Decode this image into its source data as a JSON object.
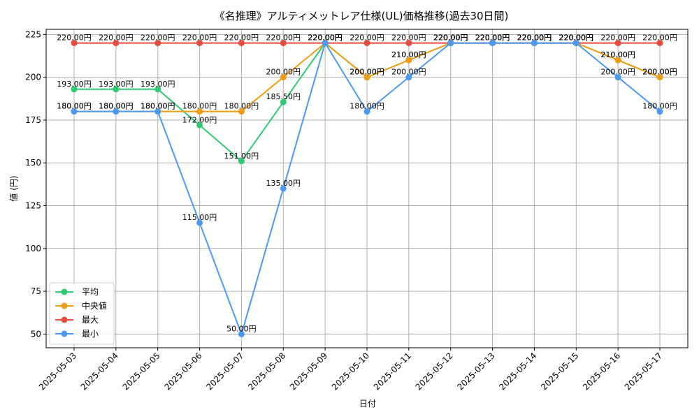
{
  "chart_data": {
    "type": "line",
    "title": "《名推理》アルティメットレア仕様(UL)価格推移(過去30日間)",
    "xlabel": "日付",
    "ylabel": "値 (円)",
    "ylim": [
      42,
      228
    ],
    "yticks": [
      50,
      75,
      100,
      125,
      150,
      175,
      200,
      225
    ],
    "grid": true,
    "legend_position": "lower-left",
    "value_suffix": "円",
    "x": [
      "2025-05-03",
      "2025-05-04",
      "2025-05-05",
      "2025-05-06",
      "2025-05-07",
      "2025-05-08",
      "2025-05-09",
      "2025-05-10",
      "2025-05-11",
      "2025-05-12",
      "2025-05-13",
      "2025-05-14",
      "2025-05-15",
      "2025-05-16",
      "2025-05-17"
    ],
    "series": [
      {
        "name": "平均",
        "color": "#2ecc71",
        "values": [
          193,
          193,
          193,
          172,
          151,
          185.5,
          220,
          200,
          210,
          220,
          220,
          220,
          220,
          210,
          200
        ]
      },
      {
        "name": "中央値",
        "color": "#f39c12",
        "values": [
          180,
          180,
          180,
          180,
          180,
          200,
          220,
          200,
          210,
          220,
          220,
          220,
          220,
          210,
          200
        ]
      },
      {
        "name": "最大",
        "color": "#e74c3c",
        "values": [
          220,
          220,
          220,
          220,
          220,
          220,
          220,
          220,
          220,
          220,
          220,
          220,
          220,
          220,
          220
        ]
      },
      {
        "name": "最小",
        "color": "#4a9af5",
        "values": [
          180,
          180,
          180,
          115,
          50,
          135,
          220,
          180,
          200,
          220,
          220,
          220,
          220,
          200,
          180
        ]
      }
    ]
  }
}
